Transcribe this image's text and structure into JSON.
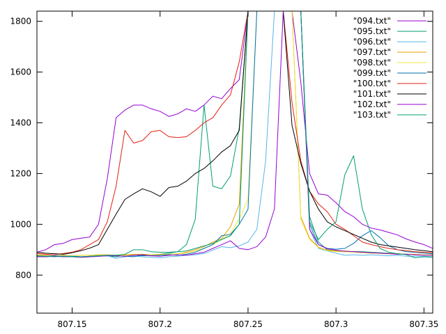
{
  "chart_data": {
    "type": "line",
    "title": "",
    "xlabel": "",
    "ylabel": "",
    "xlim": [
      807.13,
      807.355
    ],
    "ylim": [
      650,
      1840
    ],
    "x_ticks": [
      807.15,
      807.2,
      807.25,
      807.3,
      807.35
    ],
    "x_tick_labels": [
      "807.15",
      "807.2",
      "807.25",
      "807.3",
      "807.35"
    ],
    "y_ticks": [
      800,
      1000,
      1200,
      1400,
      1600,
      1800
    ],
    "y_tick_labels": [
      "800",
      "1000",
      "1200",
      "1400",
      "1600",
      "1800"
    ],
    "grid": false,
    "legend_position": "top-right",
    "series": [
      {
        "name": "\"094.txt\"",
        "color": "#9400d3",
        "x": [
          807.13,
          807.135,
          807.14,
          807.145,
          807.15,
          807.155,
          807.16,
          807.165,
          807.17,
          807.175,
          807.18,
          807.185,
          807.19,
          807.195,
          807.2,
          807.205,
          807.21,
          807.215,
          807.22,
          807.225,
          807.23,
          807.235,
          807.24,
          807.245,
          807.25,
          807.255,
          807.26,
          807.265,
          807.27,
          807.275,
          807.28,
          807.285,
          807.29,
          807.295,
          807.3,
          807.305,
          807.31,
          807.315,
          807.32,
          807.325,
          807.33,
          807.335,
          807.34,
          807.345,
          807.35,
          807.355
        ],
        "values": [
          890,
          900,
          920,
          925,
          940,
          945,
          950,
          1000,
          1180,
          1420,
          1450,
          1470,
          1470,
          1455,
          1445,
          1425,
          1435,
          1455,
          1445,
          1470,
          1505,
          1495,
          1535,
          1570,
          1840,
          1840,
          1840,
          1840,
          1840,
          1840,
          1560,
          1200,
          1120,
          1115,
          1085,
          1050,
          1030,
          1000,
          985,
          978,
          968,
          958,
          942,
          930,
          920,
          905
        ]
      },
      {
        "name": "\"095.txt\"",
        "color": "#009e73",
        "x": [
          807.13,
          807.135,
          807.14,
          807.145,
          807.15,
          807.155,
          807.16,
          807.165,
          807.17,
          807.175,
          807.18,
          807.185,
          807.19,
          807.195,
          807.2,
          807.205,
          807.21,
          807.215,
          807.22,
          807.225,
          807.23,
          807.235,
          807.24,
          807.245,
          807.25,
          807.255,
          807.26,
          807.265,
          807.27,
          807.275,
          807.28,
          807.285,
          807.29,
          807.295,
          807.3,
          807.305,
          807.31,
          807.315,
          807.32,
          807.325,
          807.33,
          807.335,
          807.34,
          807.345,
          807.35,
          807.355
        ],
        "values": [
          878,
          876,
          874,
          876,
          874,
          872,
          872,
          874,
          876,
          872,
          878,
          880,
          876,
          878,
          882,
          886,
          892,
          920,
          1020,
          1470,
          1150,
          1140,
          1190,
          1380,
          1840,
          1840,
          1840,
          1840,
          1840,
          1840,
          1840,
          1030,
          930,
          900,
          895,
          892,
          893,
          892,
          890,
          888,
          886,
          884,
          882,
          880,
          880,
          878
        ]
      },
      {
        "name": "\"096.txt\"",
        "color": "#56b4e9",
        "x": [
          807.13,
          807.135,
          807.14,
          807.145,
          807.15,
          807.155,
          807.16,
          807.165,
          807.17,
          807.175,
          807.18,
          807.185,
          807.19,
          807.195,
          807.2,
          807.205,
          807.21,
          807.215,
          807.22,
          807.225,
          807.23,
          807.235,
          807.24,
          807.245,
          807.25,
          807.255,
          807.26,
          807.265,
          807.27,
          807.275,
          807.28,
          807.285,
          807.29,
          807.295,
          807.3,
          807.305,
          807.31,
          807.315,
          807.32,
          807.325,
          807.33,
          807.335,
          807.34,
          807.345,
          807.35,
          807.355
        ],
        "values": [
          874,
          872,
          874,
          872,
          872,
          870,
          872,
          874,
          876,
          866,
          872,
          876,
          872,
          870,
          868,
          872,
          874,
          878,
          880,
          885,
          898,
          912,
          908,
          915,
          930,
          980,
          1250,
          1840,
          1840,
          1840,
          1840,
          980,
          905,
          895,
          886,
          878,
          880,
          878,
          880,
          878,
          876,
          878,
          874,
          874,
          874,
          872
        ]
      },
      {
        "name": "\"097.txt\"",
        "color": "#e69f00",
        "x": [
          807.13,
          807.135,
          807.14,
          807.145,
          807.15,
          807.155,
          807.16,
          807.165,
          807.17,
          807.175,
          807.18,
          807.185,
          807.19,
          807.195,
          807.2,
          807.205,
          807.21,
          807.215,
          807.22,
          807.225,
          807.23,
          807.235,
          807.24,
          807.245,
          807.25,
          807.255,
          807.26,
          807.265,
          807.27,
          807.275,
          807.28,
          807.285,
          807.29,
          807.295,
          807.3,
          807.305,
          807.31,
          807.315,
          807.32,
          807.325,
          807.33,
          807.335,
          807.34,
          807.345,
          807.35,
          807.355
        ],
        "values": [
          880,
          878,
          876,
          878,
          876,
          878,
          878,
          880,
          880,
          878,
          880,
          882,
          882,
          880,
          882,
          882,
          884,
          890,
          900,
          912,
          930,
          945,
          990,
          1080,
          1840,
          1840,
          1840,
          1840,
          1840,
          1840,
          1030,
          945,
          910,
          898,
          895,
          895,
          892,
          890,
          888,
          886,
          885,
          884,
          882,
          882,
          880,
          880
        ]
      },
      {
        "name": "\"098.txt\"",
        "color": "#f0e442",
        "x": [
          807.13,
          807.135,
          807.14,
          807.145,
          807.15,
          807.155,
          807.16,
          807.165,
          807.17,
          807.175,
          807.18,
          807.185,
          807.19,
          807.195,
          807.2,
          807.205,
          807.21,
          807.215,
          807.22,
          807.225,
          807.23,
          807.235,
          807.24,
          807.245,
          807.25,
          807.255,
          807.26,
          807.265,
          807.27,
          807.275,
          807.28,
          807.285,
          807.29,
          807.295,
          807.3,
          807.305,
          807.31,
          807.315,
          807.32,
          807.325,
          807.33,
          807.335,
          807.34,
          807.345,
          807.35,
          807.355
        ],
        "values": [
          878,
          876,
          876,
          876,
          876,
          878,
          878,
          878,
          880,
          876,
          878,
          880,
          878,
          880,
          880,
          882,
          884,
          886,
          895,
          905,
          920,
          940,
          965,
          1020,
          1100,
          1840,
          1840,
          1840,
          1840,
          1840,
          1020,
          940,
          908,
          896,
          892,
          892,
          890,
          888,
          886,
          885,
          884,
          882,
          882,
          880,
          880,
          878
        ]
      },
      {
        "name": "\"099.txt\"",
        "color": "#0072b2",
        "x": [
          807.13,
          807.135,
          807.14,
          807.145,
          807.15,
          807.155,
          807.16,
          807.165,
          807.17,
          807.175,
          807.18,
          807.185,
          807.19,
          807.195,
          807.2,
          807.205,
          807.21,
          807.215,
          807.22,
          807.225,
          807.23,
          807.235,
          807.24,
          807.245,
          807.25,
          807.255,
          807.26,
          807.265,
          807.27,
          807.275,
          807.28,
          807.285,
          807.29,
          807.295,
          807.3,
          807.305,
          807.31,
          807.315,
          807.32,
          807.325,
          807.33,
          807.335,
          807.34,
          807.345,
          807.35,
          807.355
        ],
        "values": [
          876,
          874,
          876,
          874,
          874,
          872,
          874,
          876,
          878,
          876,
          874,
          872,
          878,
          876,
          878,
          880,
          878,
          882,
          890,
          905,
          920,
          955,
          960,
          1000,
          1060,
          1840,
          1840,
          1840,
          1840,
          1840,
          1840,
          1000,
          920,
          905,
          902,
          905,
          925,
          955,
          975,
          948,
          915,
          900,
          892,
          890,
          886,
          884
        ]
      },
      {
        "name": "\"100.txt\"",
        "color": "#e51e10",
        "x": [
          807.13,
          807.135,
          807.14,
          807.145,
          807.15,
          807.155,
          807.16,
          807.165,
          807.17,
          807.175,
          807.18,
          807.185,
          807.19,
          807.195,
          807.2,
          807.205,
          807.21,
          807.215,
          807.22,
          807.225,
          807.23,
          807.235,
          807.24,
          807.245,
          807.25,
          807.255,
          807.26,
          807.265,
          807.27,
          807.275,
          807.28,
          807.285,
          807.29,
          807.295,
          807.3,
          807.305,
          807.31,
          807.315,
          807.32,
          807.325,
          807.33,
          807.335,
          807.34,
          807.345,
          807.35,
          807.355
        ],
        "values": [
          885,
          882,
          880,
          885,
          890,
          900,
          920,
          940,
          1010,
          1150,
          1370,
          1320,
          1330,
          1365,
          1370,
          1345,
          1342,
          1345,
          1370,
          1400,
          1420,
          1470,
          1510,
          1640,
          1840,
          1840,
          1840,
          1840,
          1840,
          1480,
          1250,
          1130,
          1080,
          1050,
          1000,
          980,
          955,
          930,
          920,
          912,
          905,
          900,
          896,
          892,
          890,
          888
        ]
      },
      {
        "name": "\"101.txt\"",
        "color": "#000000",
        "x": [
          807.13,
          807.135,
          807.14,
          807.145,
          807.15,
          807.155,
          807.16,
          807.165,
          807.17,
          807.175,
          807.18,
          807.185,
          807.19,
          807.195,
          807.2,
          807.205,
          807.21,
          807.215,
          807.22,
          807.225,
          807.23,
          807.235,
          807.24,
          807.245,
          807.25,
          807.255,
          807.26,
          807.265,
          807.27,
          807.275,
          807.28,
          807.285,
          807.29,
          807.295,
          807.3,
          807.305,
          807.31,
          807.315,
          807.32,
          807.325,
          807.33,
          807.335,
          807.34,
          807.345,
          807.35,
          807.355
        ],
        "values": [
          890,
          886,
          884,
          882,
          888,
          896,
          906,
          920,
          980,
          1040,
          1098,
          1120,
          1140,
          1128,
          1110,
          1145,
          1150,
          1170,
          1200,
          1220,
          1250,
          1285,
          1310,
          1370,
          1840,
          1840,
          1840,
          1840,
          1840,
          1390,
          1240,
          1130,
          1060,
          1010,
          990,
          975,
          960,
          945,
          930,
          920,
          915,
          910,
          905,
          900,
          896,
          892
        ]
      },
      {
        "name": "\"102.txt\"",
        "color": "#9400d3",
        "x": [
          807.13,
          807.135,
          807.14,
          807.145,
          807.15,
          807.155,
          807.16,
          807.165,
          807.17,
          807.175,
          807.18,
          807.185,
          807.19,
          807.195,
          807.2,
          807.205,
          807.21,
          807.215,
          807.22,
          807.225,
          807.23,
          807.235,
          807.24,
          807.245,
          807.25,
          807.255,
          807.26,
          807.265,
          807.27,
          807.275,
          807.28,
          807.285,
          807.29,
          807.295,
          807.3,
          807.305,
          807.31,
          807.315,
          807.32,
          807.325,
          807.33,
          807.335,
          807.34,
          807.345,
          807.35,
          807.355
        ],
        "values": [
          872,
          872,
          874,
          872,
          872,
          870,
          872,
          874,
          876,
          876,
          874,
          878,
          880,
          876,
          874,
          878,
          880,
          878,
          884,
          890,
          905,
          920,
          935,
          905,
          900,
          912,
          950,
          1060,
          1840,
          1840,
          1840,
          980,
          920,
          904,
          898,
          894,
          892,
          890,
          888,
          886,
          884,
          882,
          882,
          880,
          878,
          878
        ]
      },
      {
        "name": "\"103.txt\"",
        "color": "#009e73",
        "x": [
          807.13,
          807.135,
          807.14,
          807.145,
          807.15,
          807.155,
          807.16,
          807.165,
          807.17,
          807.175,
          807.18,
          807.185,
          807.19,
          807.195,
          807.2,
          807.205,
          807.21,
          807.215,
          807.22,
          807.225,
          807.23,
          807.235,
          807.24,
          807.245,
          807.25,
          807.255,
          807.26,
          807.265,
          807.27,
          807.275,
          807.28,
          807.285,
          807.29,
          807.295,
          807.3,
          807.305,
          807.31,
          807.315,
          807.32,
          807.325,
          807.33,
          807.335,
          807.34,
          807.345,
          807.35,
          807.355
        ],
        "values": [
          874,
          874,
          872,
          874,
          872,
          872,
          874,
          876,
          878,
          878,
          882,
          900,
          900,
          892,
          890,
          890,
          892,
          895,
          905,
          915,
          925,
          940,
          955,
          1000,
          1840,
          1840,
          1840,
          1840,
          1840,
          1840,
          1840,
          1010,
          940,
          980,
          1010,
          1195,
          1270,
          1060,
          960,
          905,
          890,
          884,
          880,
          868,
          872,
          870
        ]
      }
    ]
  }
}
